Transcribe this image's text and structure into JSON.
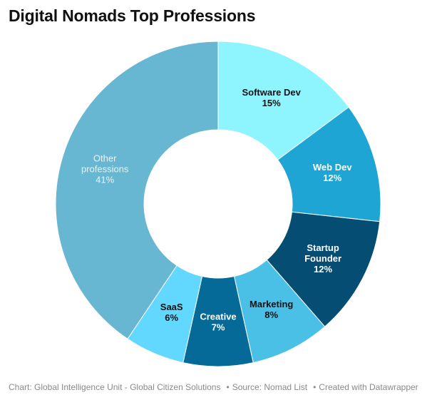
{
  "chart_data": {
    "type": "pie",
    "title": "Digital Nomads Top Professions",
    "categories": [
      "Software Dev",
      "Web Dev",
      "Startup Founder",
      "Marketing",
      "Creative",
      "SaaS",
      "Other professions"
    ],
    "values": [
      15,
      12,
      12,
      8,
      7,
      6,
      41
    ],
    "unit": "%",
    "slices": [
      {
        "label": "Software Dev",
        "value": 15,
        "value_label": "15%",
        "color": "#8ef5ff",
        "text_color": "#111111"
      },
      {
        "label": "Web Dev",
        "value": 12,
        "value_label": "12%",
        "color": "#1ea5d4",
        "text_color": "#ffffff"
      },
      {
        "label": "Startup Founder",
        "value": 12,
        "value_label": "12%",
        "color": "#054d72",
        "text_color": "#ffffff"
      },
      {
        "label": "Marketing",
        "value": 8,
        "value_label": "8%",
        "color": "#4ac0e6",
        "text_color": "#111111"
      },
      {
        "label": "Creative",
        "value": 7,
        "value_label": "7%",
        "color": "#056a97",
        "text_color": "#ffffff"
      },
      {
        "label": "SaaS",
        "value": 6,
        "value_label": "6%",
        "color": "#62d7ff",
        "text_color": "#111111"
      },
      {
        "label": "Other professions",
        "value": 41,
        "value_label": "41%",
        "color": "#67b6d2",
        "text_color": "#e6f4f9"
      }
    ]
  },
  "footer": {
    "chart_credit": "Chart: Global Intelligence Unit - Global Citizen Solutions",
    "source": "Source: Nomad List",
    "created_with": "Created with Datawrapper",
    "separator": "•"
  }
}
